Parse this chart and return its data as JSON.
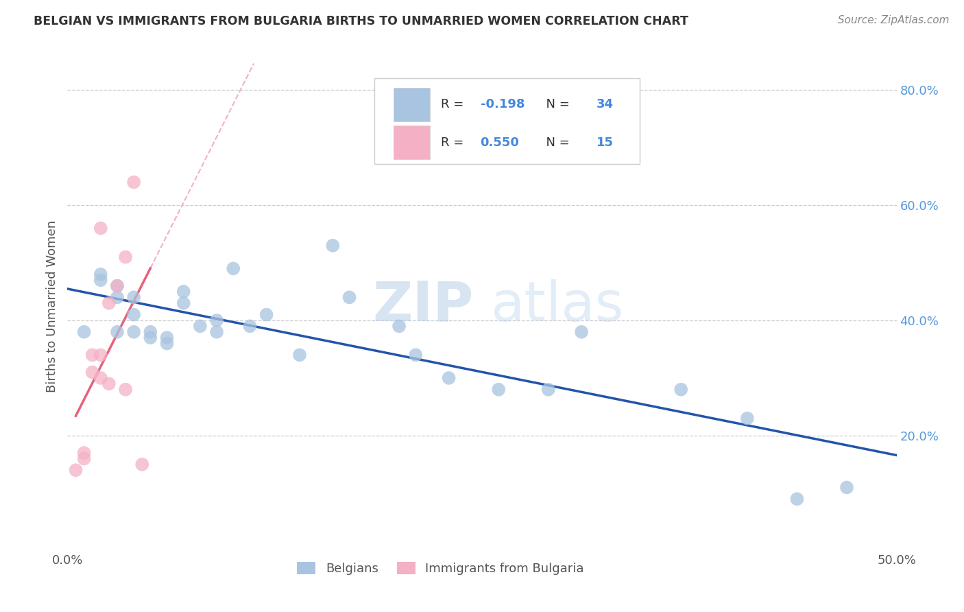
{
  "title": "BELGIAN VS IMMIGRANTS FROM BULGARIA BIRTHS TO UNMARRIED WOMEN CORRELATION CHART",
  "source": "Source: ZipAtlas.com",
  "ylabel": "Births to Unmarried Women",
  "xlim": [
    0.0,
    0.5
  ],
  "ylim": [
    0.0,
    0.85
  ],
  "yticks": [
    0.2,
    0.4,
    0.6,
    0.8
  ],
  "ytick_labels": [
    "20.0%",
    "40.0%",
    "60.0%",
    "80.0%"
  ],
  "belgian_x": [
    0.01,
    0.02,
    0.02,
    0.03,
    0.03,
    0.03,
    0.04,
    0.04,
    0.04,
    0.05,
    0.05,
    0.06,
    0.06,
    0.07,
    0.07,
    0.08,
    0.09,
    0.09,
    0.1,
    0.11,
    0.12,
    0.14,
    0.16,
    0.17,
    0.2,
    0.21,
    0.23,
    0.26,
    0.29,
    0.31,
    0.37,
    0.41,
    0.44,
    0.47
  ],
  "belgian_y": [
    0.38,
    0.48,
    0.47,
    0.44,
    0.46,
    0.38,
    0.44,
    0.41,
    0.38,
    0.37,
    0.38,
    0.36,
    0.37,
    0.43,
    0.45,
    0.39,
    0.38,
    0.4,
    0.49,
    0.39,
    0.41,
    0.34,
    0.53,
    0.44,
    0.39,
    0.34,
    0.3,
    0.28,
    0.28,
    0.38,
    0.28,
    0.23,
    0.09,
    0.11
  ],
  "bulgarian_x": [
    0.005,
    0.01,
    0.01,
    0.015,
    0.015,
    0.02,
    0.02,
    0.02,
    0.025,
    0.025,
    0.03,
    0.035,
    0.035,
    0.04,
    0.045
  ],
  "bulgarian_y": [
    0.14,
    0.17,
    0.16,
    0.31,
    0.34,
    0.3,
    0.34,
    0.56,
    0.29,
    0.43,
    0.46,
    0.28,
    0.51,
    0.64,
    0.15
  ],
  "belgian_color": "#a8c4e0",
  "bulgarian_color": "#f4b0c4",
  "belgian_line_color": "#2255aa",
  "bulgarian_line_color": "#e8607a",
  "diagonal_color": "#f4b0c4",
  "R_belgian": -0.198,
  "N_belgian": 34,
  "R_bulgarian": 0.55,
  "N_bulgarian": 15,
  "legend_label_belgian": "Belgians",
  "legend_label_bulgarian": "Immigrants from Bulgaria",
  "watermark_1": "ZIP",
  "watermark_2": "atlas",
  "background_color": "#ffffff",
  "grid_color": "#cccccc"
}
